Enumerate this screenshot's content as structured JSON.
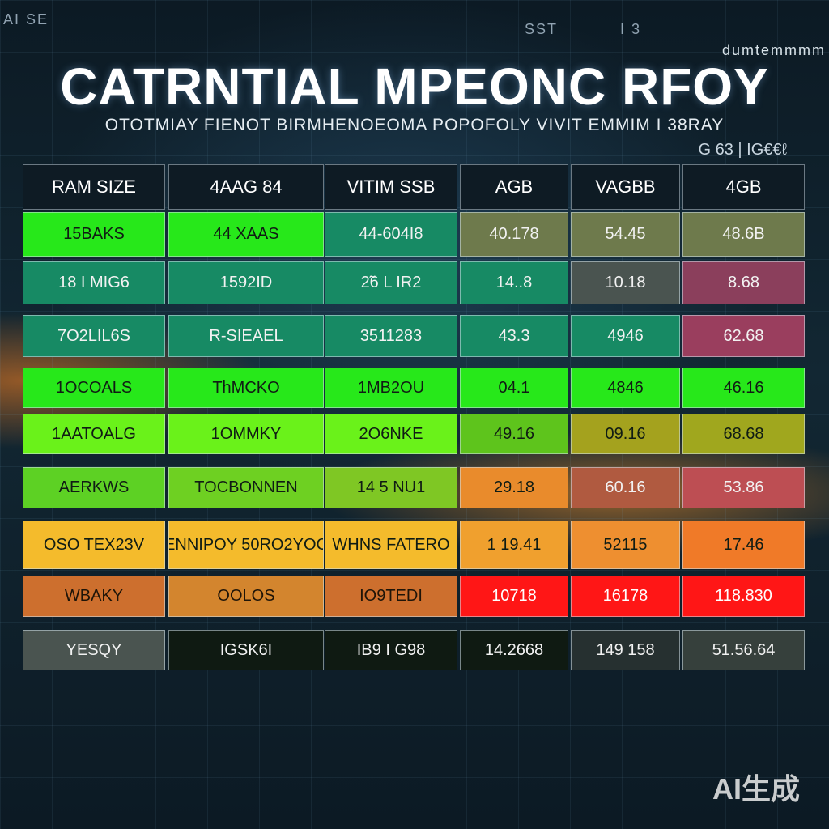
{
  "header": {
    "title": "CATRNTIAL MPEONC RFOY",
    "subtitle": "OTOTMIAY FIENOT BIRMHENOEOMA POPOFOLY VIVIT EMMIM I 38RAY",
    "side_note": "G 63 | IG€€ℓ",
    "corner_top_left": "AI SE",
    "corner_top_center": "SST",
    "corner_top_right_a": "I 3",
    "corner_top_right_b": "dumtemmmm",
    "watermark": "AI生成"
  },
  "colors": {
    "green_bright": "#27e81a",
    "teal": "#178a64",
    "olive": "#6e7a4c",
    "lime": "#6af21a",
    "orange_yellow": "#f4bb2c",
    "orange": "#cd6f2e",
    "red": "#ff1616",
    "dark": "#0f1a12",
    "gray": "#4a5450"
  },
  "chart_data": {
    "type": "table",
    "columns": [
      "RAM SIZE",
      "4AAG 84",
      "VITIM SSB",
      "AGB",
      "VAGBB",
      "4GB"
    ],
    "rows": [
      [
        "15BAKS",
        "44 XAAS",
        "44-604I8",
        "40.178",
        "54.45",
        "48.6B"
      ],
      [
        "18 I MIG6",
        "1592ID",
        "2̃6 L IR2",
        "14..8",
        "10.18",
        "8.68"
      ],
      [
        "7O2LIL6S",
        "R-SIEAEL",
        "3511283",
        "43.3",
        "4946",
        "62.68"
      ],
      [
        "1OCOALS",
        "ThMCKO",
        "1MB2OU",
        "04.1",
        "4846",
        "46.16"
      ],
      [
        "1AATOALG",
        "1OMMKY",
        "2O6NKE",
        "49.16",
        "09.16",
        "68.68"
      ],
      [
        "AERKWS",
        "TOCBONNEN",
        "14 5 NU1",
        "29.18",
        "60.16",
        "53.86"
      ],
      [
        "OSO TEX23V",
        "ENNIPOY 50RO2YOC",
        "WHNS FATERO",
        "1 19.41",
        "52115",
        "17.46"
      ],
      [
        "WBAKY",
        "OOLOS",
        "IO9TEDI",
        "10718",
        "16178",
        "118.830"
      ],
      [
        "YESQY",
        "IGSK6I",
        "IB9 I G98",
        "14.2668",
        "149 158",
        "51.56.64"
      ]
    ],
    "cell_colors": [
      [
        "green_bright",
        "green_bright",
        "teal",
        "olive",
        "olive",
        "olive"
      ],
      [
        "teal",
        "teal",
        "teal",
        "teal",
        "gray",
        "#8b3f5c"
      ],
      [
        "teal",
        "teal",
        "teal",
        "teal",
        "teal",
        "#9a3e5e"
      ],
      [
        "green_bright",
        "green_bright",
        "green_bright",
        "green_bright",
        "green_bright",
        "green_bright"
      ],
      [
        "lime",
        "lime",
        "lime",
        "#5ec41c",
        "#a4a21e",
        "#a0a71e"
      ],
      [
        "#5dd124",
        "#6ed022",
        "#7fc724",
        "#e98b2c",
        "#b05a40",
        "#bd4e53"
      ],
      [
        "orange_yellow",
        "orange_yellow",
        "orange_yellow",
        "#f0a02e",
        "#ee8f30",
        "#f07a28"
      ],
      [
        "orange",
        "#d3852e",
        "orange",
        "red",
        "red",
        "red"
      ],
      [
        "gray",
        "dark",
        "dark",
        "dark",
        "#263030",
        "#36403c"
      ]
    ]
  }
}
